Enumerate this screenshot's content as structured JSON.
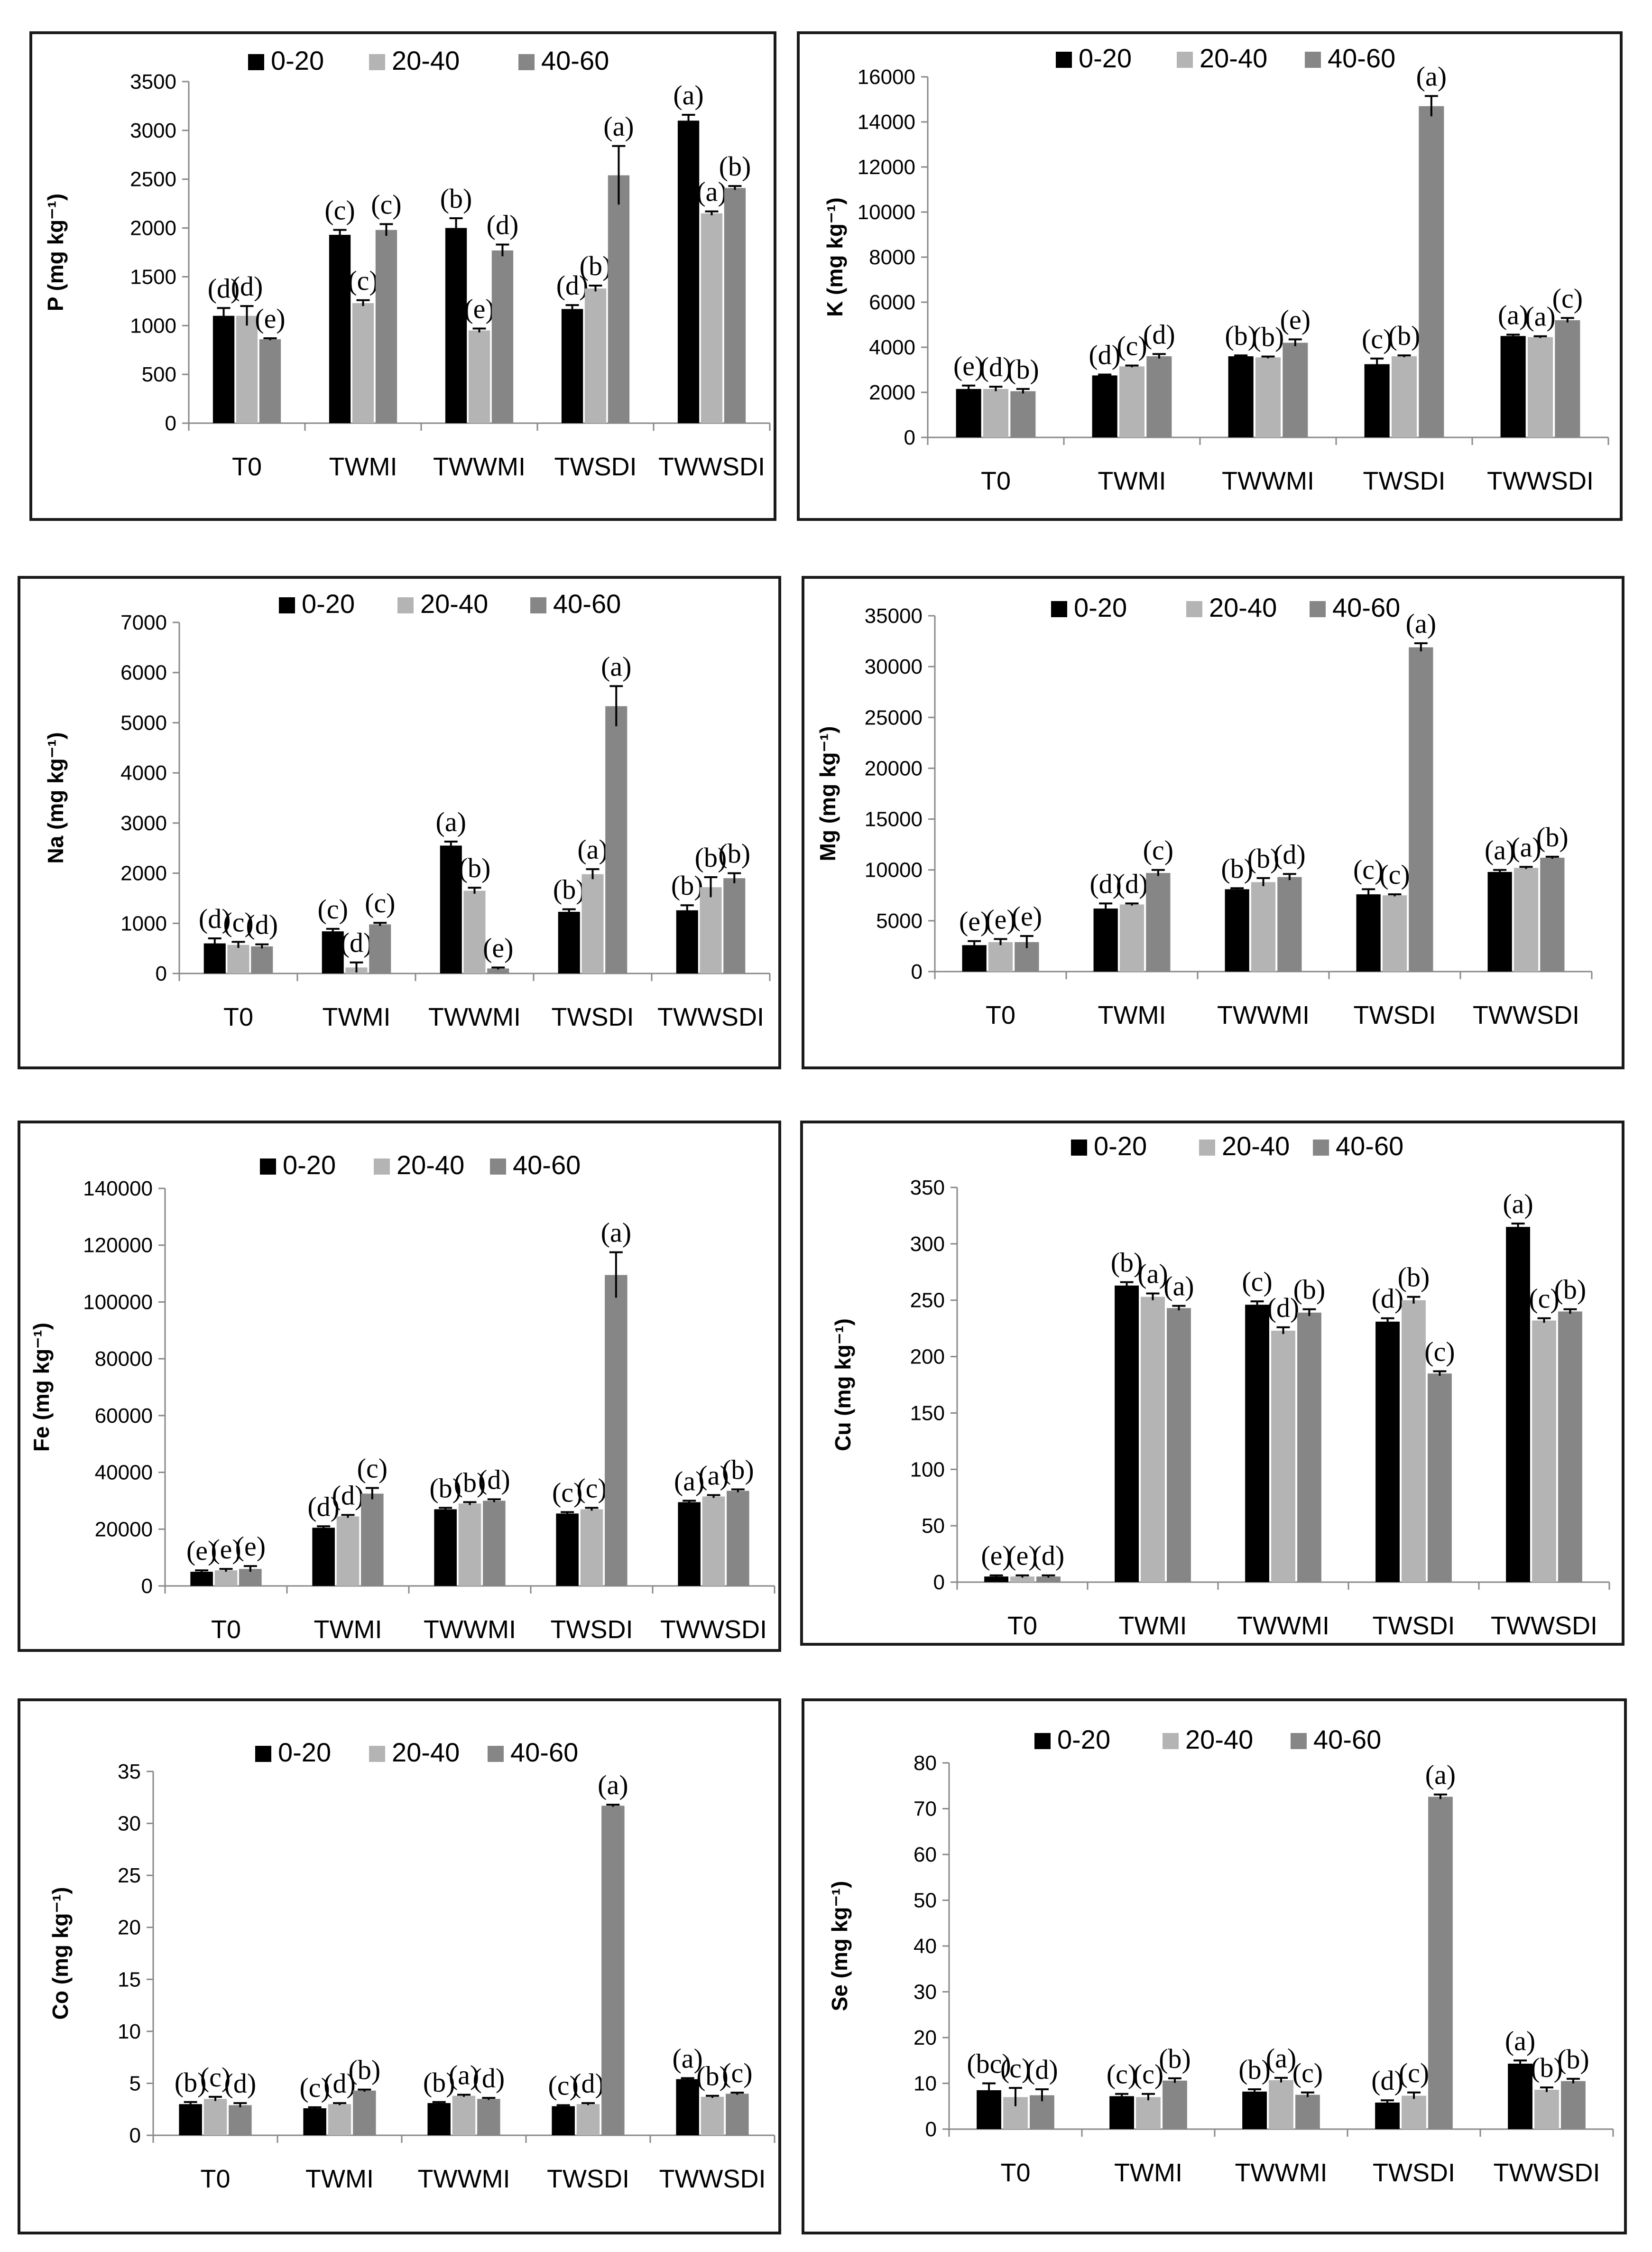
{
  "figure": {
    "categories": [
      "T0",
      "TWMI",
      "TWWMI",
      "TWSDI",
      "TWWSDI"
    ],
    "legend": [
      "0-20",
      "20-40",
      "40-60"
    ],
    "colors": [
      "#000000",
      "#b4b4b4",
      "#868686"
    ]
  },
  "chart_data": [
    {
      "type": "bar",
      "ylabel": "P (mg kg⁻¹)",
      "ylim": [
        0,
        3500
      ],
      "yticks": [
        "0",
        "500",
        "1000",
        "1500",
        "2000",
        "2500",
        "3000",
        "3500"
      ],
      "series": [
        {
          "name": "0-20",
          "values": [
            1100,
            1930,
            2000,
            1170,
            3100
          ],
          "errors": [
            80,
            50,
            100,
            40,
            60
          ],
          "labels": [
            "(d)",
            "(c)",
            "(b)",
            "(d)",
            "(a)"
          ]
        },
        {
          "name": "20-40",
          "values": [
            1100,
            1230,
            950,
            1380,
            2150
          ],
          "errors": [
            100,
            30,
            20,
            30,
            20
          ],
          "labels": [
            "(d)",
            "(c)",
            "(e)",
            "(b)",
            "(a)"
          ]
        },
        {
          "name": "40-60",
          "values": [
            860,
            1980,
            1770,
            2540,
            2410
          ],
          "errors": [
            10,
            60,
            60,
            300,
            20
          ],
          "labels": [
            "(e)",
            "(c)",
            "(d)",
            "(a)",
            "(b)"
          ]
        }
      ]
    },
    {
      "type": "bar",
      "ylabel": "K (mg kg⁻¹)",
      "ylim": [
        0,
        16000
      ],
      "yticks": [
        "0",
        "2000",
        "4000",
        "6000",
        "8000",
        "10000",
        "12000",
        "14000",
        "16000"
      ],
      "series": [
        {
          "name": "0-20",
          "values": [
            2150,
            2750,
            3600,
            3250,
            4500
          ],
          "errors": [
            150,
            40,
            40,
            250,
            60
          ],
          "labels": [
            "(e)",
            "(d)",
            "(b)",
            "(c)",
            "(a)"
          ]
        },
        {
          "name": "20-40",
          "values": [
            2150,
            3150,
            3550,
            3600,
            4450
          ],
          "errors": [
            100,
            40,
            40,
            40,
            40
          ],
          "labels": [
            "(d)",
            "(c)",
            "(b)",
            "(b)",
            "(a)"
          ]
        },
        {
          "name": "40-60",
          "values": [
            2050,
            3600,
            4200,
            14700,
            5200
          ],
          "errors": [
            100,
            100,
            150,
            450,
            100
          ],
          "labels": [
            "(b)",
            "(d)",
            "(e)",
            "(a)",
            "(c)"
          ]
        }
      ]
    },
    {
      "type": "bar",
      "ylabel": "Na (mg kg⁻¹)",
      "ylim": [
        0,
        7000
      ],
      "yticks": [
        "0",
        "1000",
        "2000",
        "3000",
        "4000",
        "5000",
        "6000",
        "7000"
      ],
      "series": [
        {
          "name": "0-20",
          "values": [
            600,
            840,
            2550,
            1230,
            1260
          ],
          "errors": [
            100,
            50,
            80,
            50,
            100
          ],
          "labels": [
            "(d)",
            "(c)",
            "(a)",
            "(b)",
            "(b)"
          ]
        },
        {
          "name": "20-40",
          "values": [
            570,
            120,
            1650,
            1980,
            1720
          ],
          "errors": [
            60,
            100,
            60,
            100,
            200
          ],
          "labels": [
            "(c)",
            "(d)",
            "(b)",
            "(a)",
            "(b)"
          ]
        },
        {
          "name": "40-60",
          "values": [
            540,
            980,
            100,
            5330,
            1900
          ],
          "errors": [
            40,
            30,
            20,
            400,
            100
          ],
          "labels": [
            "(d)",
            "(c)",
            "(e)",
            "(a)",
            "(b)"
          ]
        }
      ]
    },
    {
      "type": "bar",
      "ylabel": "Mg (mg kg⁻¹)",
      "ylim": [
        0,
        35000
      ],
      "yticks": [
        "0",
        "5000",
        "10000",
        "15000",
        "20000",
        "25000",
        "30000",
        "35000"
      ],
      "series": [
        {
          "name": "0-20",
          "values": [
            2600,
            6200,
            8100,
            7600,
            9800
          ],
          "errors": [
            400,
            500,
            100,
            500,
            200
          ],
          "labels": [
            "(e)",
            "(d)",
            "(b)",
            "(c)",
            "(a)"
          ]
        },
        {
          "name": "20-40",
          "values": [
            2900,
            6600,
            8800,
            7500,
            10200
          ],
          "errors": [
            300,
            100,
            400,
            100,
            100
          ],
          "labels": [
            "(e)",
            "(d)",
            "(b)",
            "(c)",
            "(a)"
          ]
        },
        {
          "name": "40-60",
          "values": [
            2900,
            9700,
            9300,
            31900,
            11200
          ],
          "errors": [
            600,
            300,
            300,
            400,
            100
          ],
          "labels": [
            "(e)",
            "(c)",
            "(d)",
            "(a)",
            "(b)"
          ]
        }
      ]
    },
    {
      "type": "bar",
      "ylabel": "Fe (mg kg⁻¹)",
      "ylim": [
        0,
        140000
      ],
      "yticks": [
        "0",
        "20000",
        "40000",
        "60000",
        "80000",
        "100000",
        "120000",
        "140000"
      ],
      "series": [
        {
          "name": "0-20",
          "values": [
            5000,
            20500,
            27000,
            25500,
            29500
          ],
          "errors": [
            500,
            500,
            500,
            500,
            500
          ],
          "labels": [
            "(e)",
            "(d)",
            "(b)",
            "(c)",
            "(a)"
          ]
        },
        {
          "name": "20-40",
          "values": [
            5500,
            24500,
            29000,
            27000,
            31500
          ],
          "errors": [
            500,
            500,
            500,
            500,
            500
          ],
          "labels": [
            "(e)",
            "(d)",
            "(b)",
            "(c)",
            "(a)"
          ]
        },
        {
          "name": "40-60",
          "values": [
            6000,
            32500,
            30000,
            109500,
            33500
          ],
          "errors": [
            1000,
            2000,
            500,
            8000,
            500
          ],
          "labels": [
            "(e)",
            "(c)",
            "(d)",
            "(a)",
            "(b)"
          ]
        }
      ]
    },
    {
      "type": "bar",
      "ylabel": "Cu (mg kg⁻¹)",
      "ylim": [
        0,
        350
      ],
      "yticks": [
        "0",
        "50",
        "100",
        "150",
        "200",
        "250",
        "300",
        "350"
      ],
      "series": [
        {
          "name": "0-20",
          "values": [
            5,
            263,
            246,
            231,
            315
          ],
          "errors": [
            1,
            3,
            3,
            3,
            3
          ],
          "labels": [
            "(e)",
            "(b)",
            "(c)",
            "(d)",
            "(a)"
          ]
        },
        {
          "name": "20-40",
          "values": [
            5,
            253,
            223,
            250,
            232
          ],
          "errors": [
            1,
            3,
            3,
            3,
            2
          ],
          "labels": [
            "(e)",
            "(a)",
            "(d)",
            "(b)",
            "(c)"
          ]
        },
        {
          "name": "40-60",
          "values": [
            5,
            243,
            239,
            185,
            240
          ],
          "errors": [
            1,
            2,
            3,
            2,
            2
          ],
          "labels": [
            "(d)",
            "(a)",
            "(b)",
            "(c)",
            "(b)"
          ]
        }
      ]
    },
    {
      "type": "bar",
      "ylabel": "Co (mg kg⁻¹)",
      "ylim": [
        0,
        35
      ],
      "yticks": [
        "0",
        "5",
        "10",
        "15",
        "20",
        "25",
        "30",
        "35"
      ],
      "series": [
        {
          "name": "0-20",
          "values": [
            3.0,
            2.6,
            3.1,
            2.8,
            5.4
          ],
          "errors": [
            0.2,
            0.1,
            0.1,
            0.1,
            0.1
          ],
          "labels": [
            "(b)",
            "(c)",
            "(b)",
            "(c)",
            "(a)"
          ]
        },
        {
          "name": "20-40",
          "values": [
            3.5,
            3.0,
            3.8,
            3.0,
            3.7
          ],
          "errors": [
            0.2,
            0.1,
            0.1,
            0.1,
            0.1
          ],
          "labels": [
            "(c)",
            "(d)",
            "(a)",
            "(d)",
            "(b)"
          ]
        },
        {
          "name": "40-60",
          "values": [
            2.9,
            4.3,
            3.5,
            31.7,
            4.0
          ],
          "errors": [
            0.2,
            0.1,
            0.1,
            0.1,
            0.1
          ],
          "labels": [
            "(d)",
            "(b)",
            "(d)",
            "(a)",
            "(c)"
          ]
        }
      ]
    },
    {
      "type": "bar",
      "ylabel": "Se (mg kg⁻¹)",
      "ylim": [
        0,
        80
      ],
      "yticks": [
        "0",
        "10",
        "20",
        "30",
        "40",
        "50",
        "60",
        "70",
        "80"
      ],
      "series": [
        {
          "name": "0-20",
          "values": [
            8.5,
            7.2,
            8.2,
            5.8,
            14.3
          ],
          "errors": [
            1.5,
            0.5,
            0.5,
            0.5,
            0.7
          ],
          "labels": [
            "(bc)",
            "(c)",
            "(b)",
            "(d)",
            "(a)"
          ]
        },
        {
          "name": "20-40",
          "values": [
            7.0,
            7.0,
            10.7,
            7.3,
            8.6
          ],
          "errors": [
            2.0,
            0.7,
            0.5,
            0.7,
            0.5
          ],
          "labels": [
            "(c)",
            "(c)",
            "(a)",
            "(c)",
            "(b)"
          ]
        },
        {
          "name": "40-60",
          "values": [
            7.4,
            10.6,
            7.5,
            72.6,
            10.5
          ],
          "errors": [
            1.3,
            0.5,
            0.5,
            0.5,
            0.5
          ],
          "labels": [
            "(d)",
            "(b)",
            "(c)",
            "(a)",
            "(b)"
          ]
        }
      ]
    }
  ]
}
